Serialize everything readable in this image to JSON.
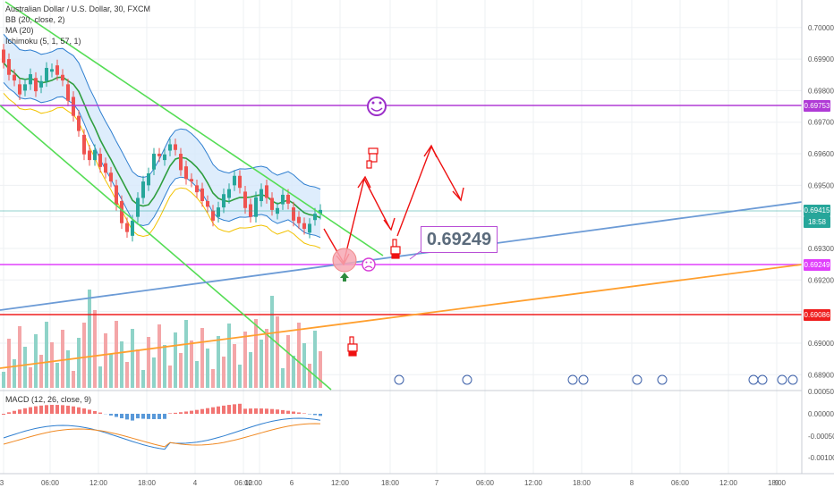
{
  "header": {
    "symbol_title": "Australian Dollar / U.S. Dollar, 30, FXCM",
    "indicator_bb": "BB (20, close, 2)",
    "indicator_ma": "MA (20)",
    "indicator_ichimoku": "Ichimoku (5, 1, 57, 1)",
    "indicator_macd": "MACD (12, 26, close, 9)"
  },
  "callout": {
    "text": "0.69249"
  },
  "price_tags": [
    {
      "label": "0.69753",
      "color": "#b03bd6"
    },
    {
      "label": "0.69415",
      "color": "#26a69a"
    },
    {
      "label": "18:58",
      "color": "#26a69a"
    },
    {
      "label": "0.69249",
      "color": "#e040fb"
    },
    {
      "label": "0.69086",
      "color": "#ef1e1e"
    }
  ],
  "chart_data": {
    "type": "candlestick",
    "title": "Australian Dollar / U.S. Dollar, 30, FXCM",
    "price_axis_ticks": [
      "0.70000",
      "0.69900",
      "0.69800",
      "0.69700",
      "0.69600",
      "0.69500",
      "0.69300",
      "0.69200",
      "0.69000",
      "0.68900",
      "0.00050",
      "0.00000",
      "-0.00050",
      "-0.00100"
    ],
    "time_axis_ticks": [
      "3",
      "06:00",
      "12:00",
      "18:00",
      "4",
      "06:00",
      "12:00",
      "6",
      "12:00",
      "18:00",
      "7",
      "06:00",
      "12:00",
      "18:00",
      "8",
      "06:00",
      "12:00",
      "18:00",
      "9"
    ],
    "horizontal_levels": [
      {
        "value": 0.69753,
        "color": "#b03bd6"
      },
      {
        "value": 0.69415,
        "color": "#26a69a"
      },
      {
        "value": 0.69249,
        "color": "#e040fb"
      },
      {
        "value": 0.69086,
        "color": "#ef1e1e"
      }
    ],
    "annotation_value": 0.69249,
    "macd_indicator": "MACD (12, 26, close, 9)",
    "grid": true,
    "colors": {
      "up": "#26a69a",
      "down": "#ef5350",
      "bb_fill": "#cfe6fb",
      "channel": "#55dd55",
      "trend_blue": "#6c9bd6",
      "trend_orange": "#ff9f2e",
      "arrows": "#ee1111"
    }
  }
}
